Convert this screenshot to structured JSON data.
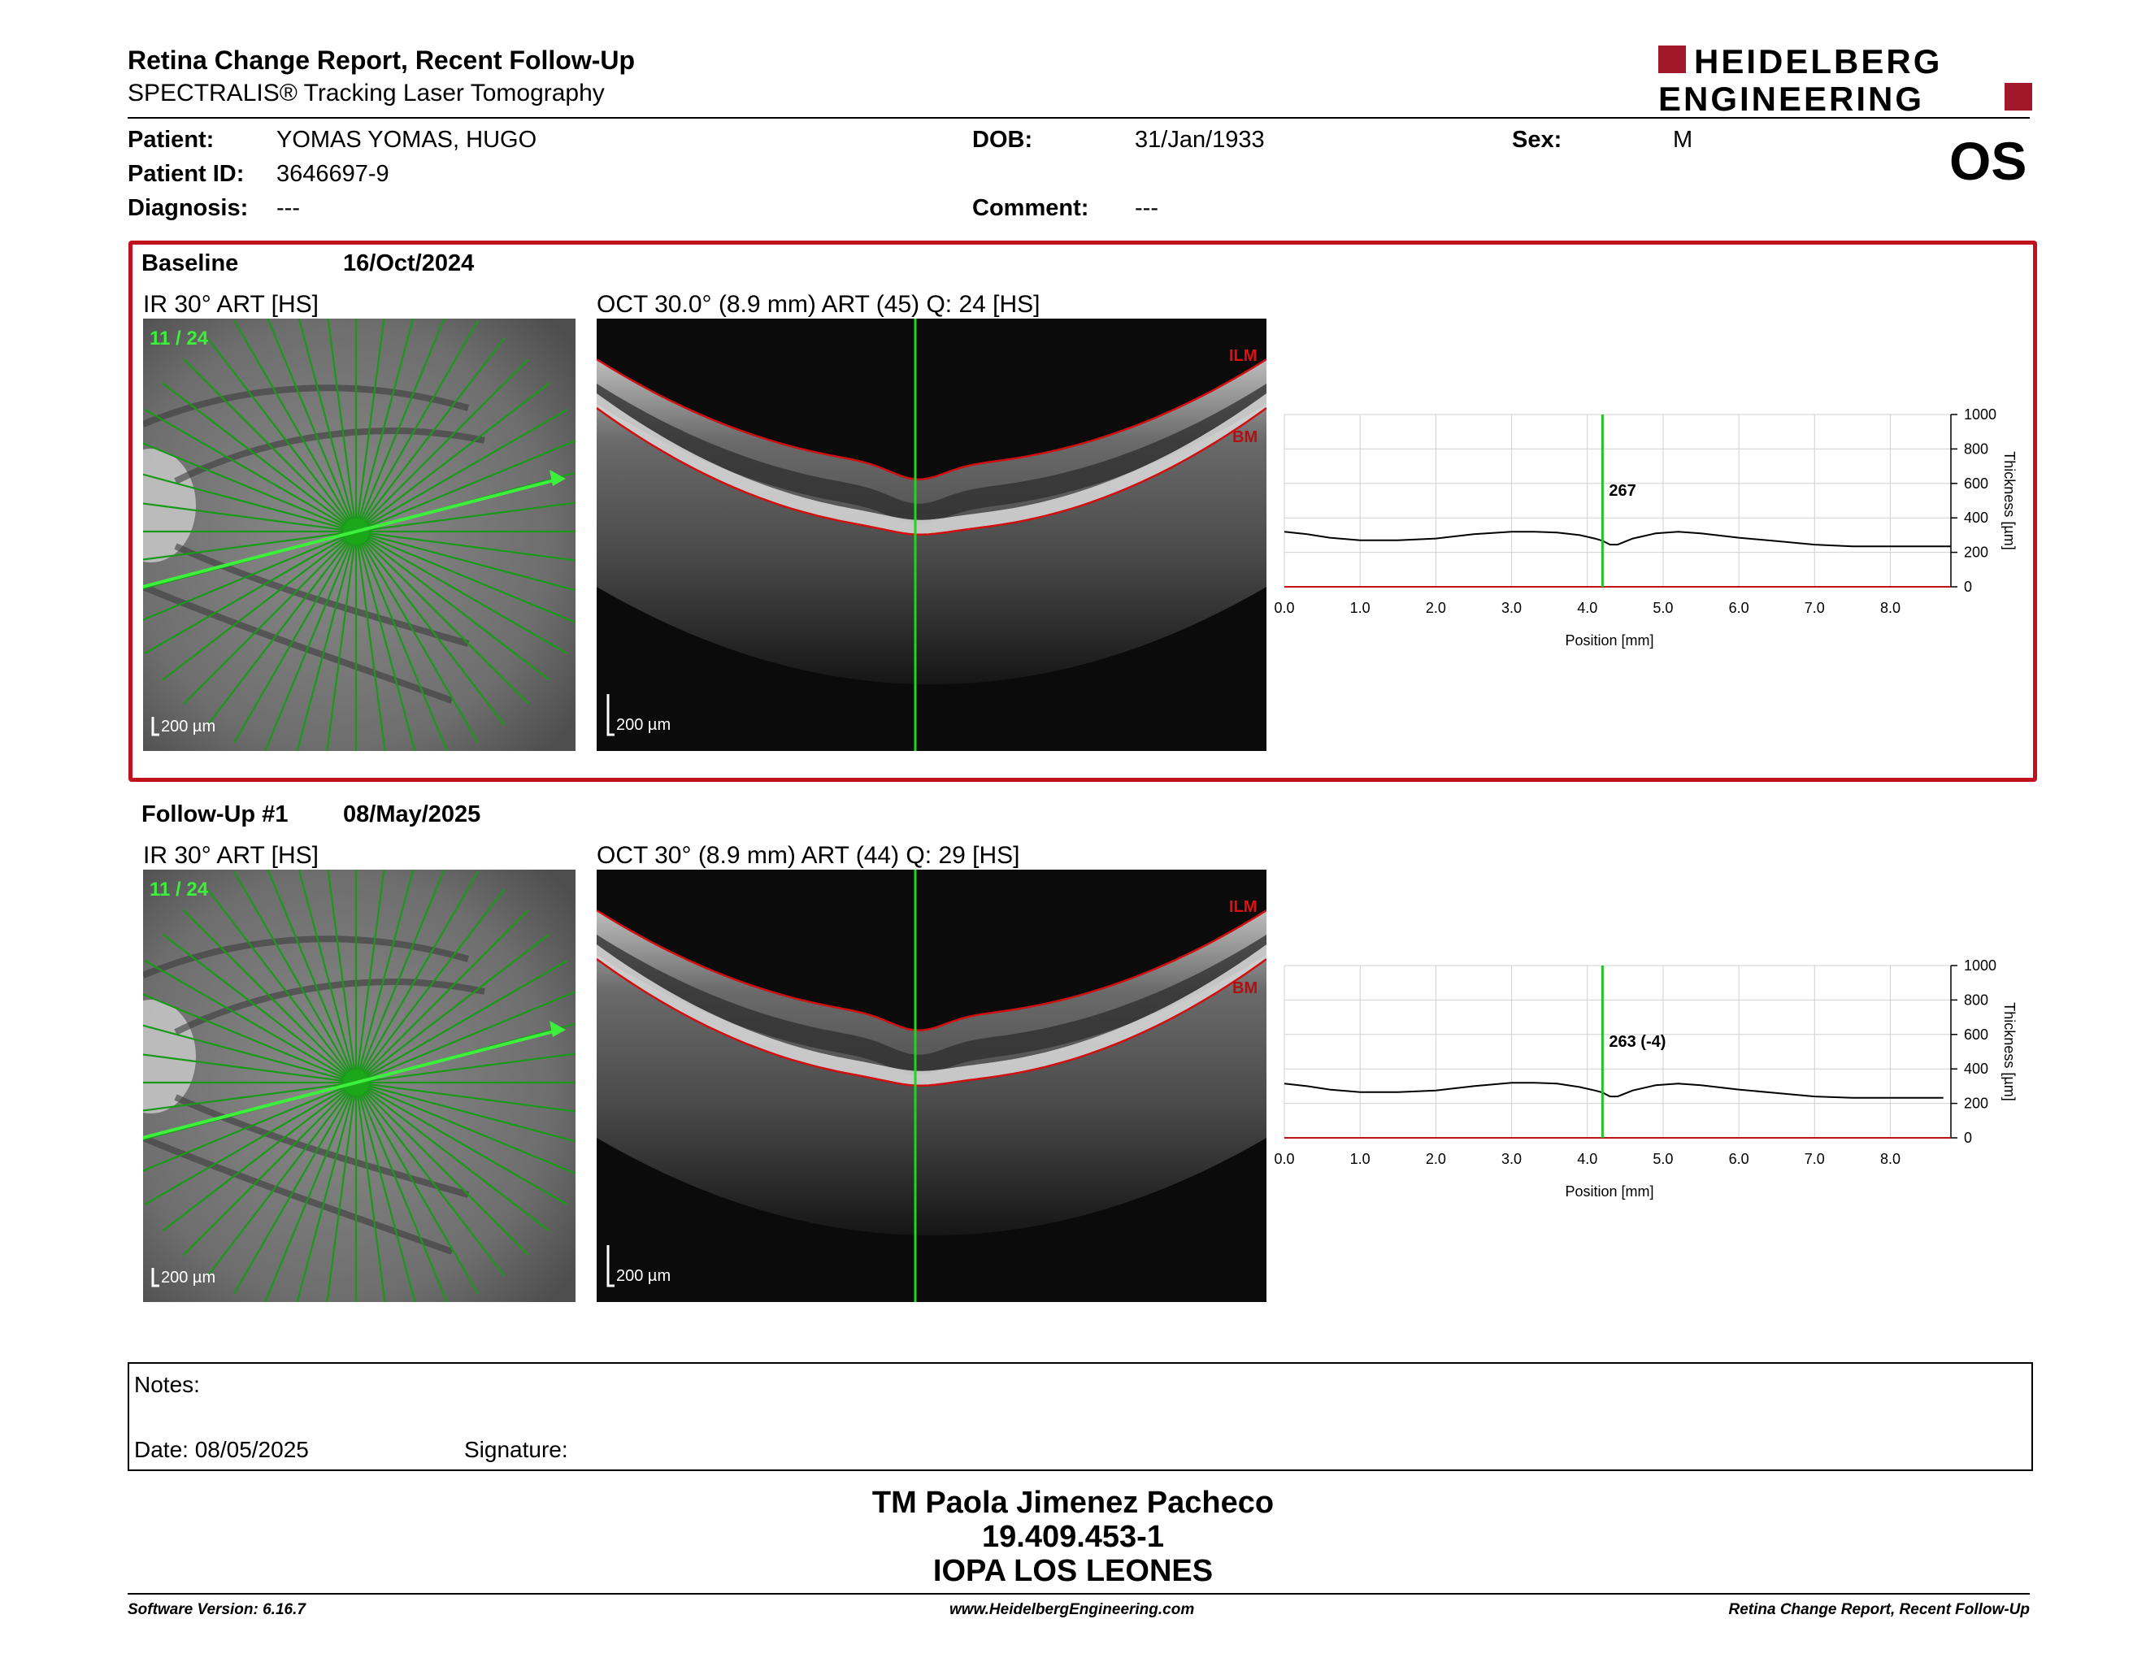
{
  "header": {
    "title": "Retina Change Report, Recent Follow-Up",
    "subtitle": "SPECTRALIS® Tracking Laser Tomography",
    "logo_line1": "HEIDELBERG",
    "logo_line2": "ENGINEERING",
    "eye": "OS"
  },
  "patient": {
    "patient_label": "Patient:",
    "patient_value": "YOMAS YOMAS, HUGO",
    "id_label": "Patient ID:",
    "id_value": "3646697-9",
    "diagnosis_label": "Diagnosis:",
    "diagnosis_value": "---",
    "dob_label": "DOB:",
    "dob_value": "31/Jan/1933",
    "comment_label": "Comment:",
    "comment_value": "---",
    "sex_label": "Sex:",
    "sex_value": "M"
  },
  "colors": {
    "accent_red": "#c0111c",
    "scan_green": "#22c322",
    "layer_red": "#d01010"
  },
  "baseline": {
    "name": "Baseline",
    "date": "16/Oct/2024",
    "ir_title": "IR 30° ART [HS]",
    "ir_counter": "11 / 24",
    "ir_scale": "200 µm",
    "oct_title": "OCT 30.0° (8.9 mm) ART (45) Q: 24 [HS]",
    "oct_scale": "200 µm",
    "ilm": "ILM",
    "bm": "BM",
    "value_label": "267"
  },
  "followup": {
    "name": "Follow-Up #1",
    "date": "08/May/2025",
    "ir_title": "IR 30° ART [HS]",
    "ir_counter": "11 / 24",
    "ir_scale": "200 µm",
    "oct_title": "OCT 30° (8.9 mm) ART (44) Q: 29 [HS]",
    "oct_scale": "200 µm",
    "ilm": "ILM",
    "bm": "BM",
    "value_label": "263 (-4)"
  },
  "chart_data": [
    {
      "type": "line",
      "xlabel": "Position [mm]",
      "ylabel": "Thickness [µm]",
      "xlim": [
        0,
        8.8
      ],
      "ylim": [
        0,
        1000
      ],
      "x_ticks": [
        "0.0",
        "1.0",
        "2.0",
        "3.0",
        "4.0",
        "5.0",
        "6.0",
        "7.0",
        "8.0"
      ],
      "y_ticks": [
        "0",
        "200",
        "400",
        "600",
        "800",
        "1000"
      ],
      "marker_x": 4.2,
      "marker_label": "267",
      "series": [
        {
          "x": [
            0,
            0.3,
            0.6,
            1.0,
            1.5,
            2.0,
            2.5,
            3.0,
            3.3,
            3.6,
            3.9,
            4.1,
            4.2,
            4.3,
            4.4,
            4.6,
            4.9,
            5.2,
            5.5,
            6.0,
            6.5,
            7.0,
            7.5,
            8.0,
            8.5,
            8.8
          ],
          "values": [
            320,
            305,
            285,
            270,
            270,
            280,
            305,
            320,
            320,
            315,
            300,
            280,
            267,
            245,
            245,
            280,
            310,
            320,
            310,
            285,
            265,
            245,
            235,
            235,
            235,
            235
          ]
        }
      ]
    },
    {
      "type": "line",
      "xlabel": "Position [mm]",
      "ylabel": "Thickness [µm]",
      "xlim": [
        0,
        8.8
      ],
      "ylim": [
        0,
        1000
      ],
      "x_ticks": [
        "0.0",
        "1.0",
        "2.0",
        "3.0",
        "4.0",
        "5.0",
        "6.0",
        "7.0",
        "8.0"
      ],
      "y_ticks": [
        "0",
        "200",
        "400",
        "600",
        "800",
        "1000"
      ],
      "marker_x": 4.2,
      "marker_label": "263 (-4)",
      "series": [
        {
          "x": [
            0,
            0.3,
            0.6,
            1.0,
            1.5,
            2.0,
            2.5,
            3.0,
            3.3,
            3.6,
            3.9,
            4.1,
            4.2,
            4.3,
            4.4,
            4.6,
            4.9,
            5.2,
            5.5,
            6.0,
            6.5,
            7.0,
            7.5,
            8.0,
            8.5,
            8.7
          ],
          "values": [
            315,
            300,
            280,
            265,
            265,
            275,
            300,
            320,
            320,
            315,
            295,
            275,
            263,
            240,
            240,
            275,
            305,
            315,
            305,
            280,
            260,
            240,
            232,
            232,
            232,
            232
          ]
        }
      ]
    }
  ],
  "notes": {
    "notes_label": "Notes:",
    "date_label": "Date: 08/05/2025",
    "signature_label": "Signature:"
  },
  "signer": {
    "name": "TM Paola Jimenez Pacheco",
    "id": "19.409.453-1",
    "place": "IOPA LOS LEONES"
  },
  "footer": {
    "software": "Software Version: 6.16.7",
    "website": "www.HeidelbergEngineering.com",
    "report": "Retina Change Report, Recent Follow-Up"
  }
}
